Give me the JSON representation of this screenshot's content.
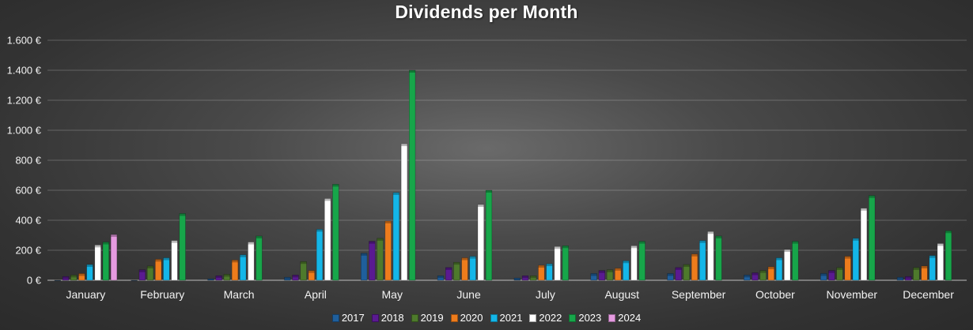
{
  "chart_data": {
    "type": "bar",
    "title": "Dividends per Month",
    "categories": [
      "January",
      "February",
      "March",
      "April",
      "May",
      "June",
      "July",
      "August",
      "September",
      "October",
      "November",
      "December"
    ],
    "ylim": [
      0,
      1600
    ],
    "yticks": [
      0,
      200,
      400,
      600,
      800,
      1000,
      1200,
      1400,
      1600
    ],
    "ytick_labels": [
      "0 €",
      "200 €",
      "400 €",
      "600 €",
      "800 €",
      "1.000 €",
      "1.200 €",
      "1.400 €",
      "1.600 €"
    ],
    "grid": true,
    "legend_position": "bottom",
    "series": [
      {
        "name": "2017",
        "color": "#1f5f9c",
        "values": [
          0,
          0,
          10,
          20,
          180,
          30,
          15,
          45,
          45,
          35,
          45,
          20
        ]
      },
      {
        "name": "2018",
        "color": "#5a1a91",
        "values": [
          25,
          70,
          30,
          35,
          260,
          85,
          30,
          65,
          85,
          50,
          65,
          25
        ]
      },
      {
        "name": "2019",
        "color": "#4e7a2c",
        "values": [
          35,
          95,
          40,
          125,
          280,
          120,
          30,
          70,
          105,
          65,
          85,
          85
        ]
      },
      {
        "name": "2020",
        "color": "#ee7c1c",
        "values": [
          45,
          140,
          135,
          65,
          395,
          150,
          100,
          80,
          175,
          90,
          160,
          95
        ]
      },
      {
        "name": "2021",
        "color": "#14b6e8",
        "values": [
          105,
          150,
          170,
          340,
          585,
          160,
          110,
          130,
          265,
          150,
          280,
          165
        ]
      },
      {
        "name": "2022",
        "color": "#ffffff",
        "values": [
          235,
          265,
          255,
          545,
          910,
          505,
          225,
          230,
          325,
          205,
          480,
          245
        ]
      },
      {
        "name": "2023",
        "color": "#17a64a",
        "values": [
          255,
          445,
          295,
          640,
          1400,
          600,
          230,
          260,
          295,
          260,
          565,
          330
        ]
      },
      {
        "name": "2024",
        "color": "#e59ae0",
        "values": [
          305,
          null,
          null,
          null,
          null,
          null,
          null,
          null,
          null,
          null,
          null,
          null
        ]
      }
    ]
  }
}
